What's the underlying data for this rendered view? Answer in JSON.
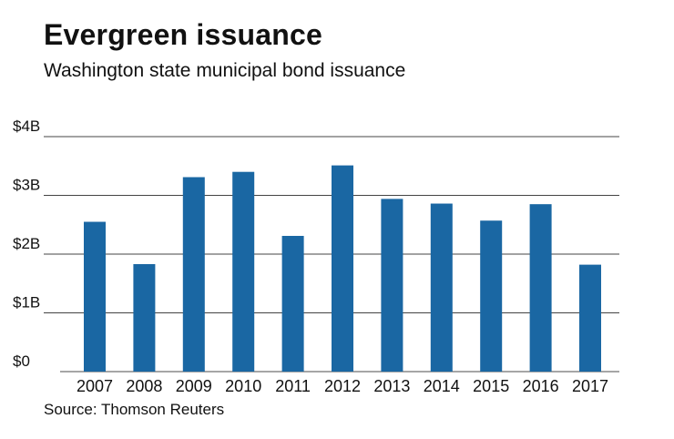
{
  "chart_data": {
    "type": "bar",
    "title": "Evergreen issuance",
    "subtitle": "Washington state municipal bond issuance",
    "source": "Source: Thomson Reuters",
    "categories": [
      "2007",
      "2008",
      "2009",
      "2010",
      "2011",
      "2012",
      "2013",
      "2014",
      "2015",
      "2016",
      "2017"
    ],
    "values": [
      2.55,
      1.83,
      3.31,
      3.4,
      2.31,
      3.51,
      2.94,
      2.86,
      2.57,
      2.85,
      1.82
    ],
    "value_unit": "billions of dollars",
    "yticks": [
      0,
      1,
      2,
      3,
      4
    ],
    "ytick_labels": [
      "$0",
      "$1B",
      "$2B",
      "$3B",
      "$4B"
    ],
    "ylim": [
      0,
      4
    ],
    "xlabel": "",
    "ylabel": "",
    "grid": true,
    "bar_color": "#1a67a3"
  }
}
